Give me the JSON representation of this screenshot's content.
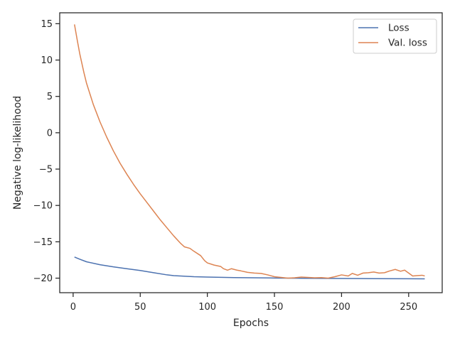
{
  "chart_data": {
    "type": "line",
    "title": "",
    "xlabel": "Epochs",
    "ylabel": "Negative log-likelihood",
    "xlim": [
      -10,
      275
    ],
    "ylim": [
      -22,
      16.5
    ],
    "xticks": [
      0,
      50,
      100,
      150,
      200,
      250
    ],
    "yticks": [
      15,
      10,
      5,
      0,
      -5,
      -10,
      -15,
      -20
    ],
    "ytick_labels": [
      "15",
      "10",
      "5",
      "0",
      "−5",
      "−10",
      "−15",
      "−20"
    ],
    "grid": false,
    "legend_position": "top-right",
    "series": [
      {
        "name": "Loss",
        "color": "#4c72b0",
        "points": [
          [
            1,
            -17.1
          ],
          [
            5,
            -17.4
          ],
          [
            10,
            -17.75
          ],
          [
            20,
            -18.15
          ],
          [
            30,
            -18.45
          ],
          [
            40,
            -18.7
          ],
          [
            50,
            -18.95
          ],
          [
            60,
            -19.25
          ],
          [
            70,
            -19.55
          ],
          [
            75,
            -19.65
          ],
          [
            80,
            -19.7
          ],
          [
            90,
            -19.8
          ],
          [
            100,
            -19.85
          ],
          [
            120,
            -19.92
          ],
          [
            150,
            -19.98
          ],
          [
            175,
            -20.02
          ],
          [
            200,
            -20.05
          ],
          [
            225,
            -20.07
          ],
          [
            250,
            -20.08
          ],
          [
            262,
            -20.1
          ]
        ]
      },
      {
        "name": "Val. loss",
        "color": "#dd8452",
        "points": [
          [
            1,
            14.9
          ],
          [
            3,
            12.8
          ],
          [
            5,
            10.8
          ],
          [
            8,
            8.3
          ],
          [
            10,
            6.8
          ],
          [
            15,
            3.9
          ],
          [
            20,
            1.5
          ],
          [
            25,
            -0.6
          ],
          [
            30,
            -2.5
          ],
          [
            35,
            -4.2
          ],
          [
            40,
            -5.7
          ],
          [
            45,
            -7.1
          ],
          [
            50,
            -8.4
          ],
          [
            55,
            -9.6
          ],
          [
            60,
            -10.8
          ],
          [
            65,
            -12.0
          ],
          [
            70,
            -13.1
          ],
          [
            75,
            -14.2
          ],
          [
            80,
            -15.2
          ],
          [
            83,
            -15.7
          ],
          [
            87,
            -15.9
          ],
          [
            90,
            -16.3
          ],
          [
            95,
            -16.9
          ],
          [
            98,
            -17.6
          ],
          [
            100,
            -17.9
          ],
          [
            105,
            -18.2
          ],
          [
            110,
            -18.4
          ],
          [
            112,
            -18.7
          ],
          [
            115,
            -18.9
          ],
          [
            118,
            -18.7
          ],
          [
            122,
            -18.9
          ],
          [
            125,
            -19.0
          ],
          [
            130,
            -19.2
          ],
          [
            135,
            -19.3
          ],
          [
            140,
            -19.35
          ],
          [
            145,
            -19.55
          ],
          [
            150,
            -19.8
          ],
          [
            155,
            -19.9
          ],
          [
            160,
            -20.0
          ],
          [
            165,
            -19.95
          ],
          [
            170,
            -19.85
          ],
          [
            175,
            -19.9
          ],
          [
            180,
            -19.95
          ],
          [
            185,
            -19.92
          ],
          [
            190,
            -20.0
          ],
          [
            195,
            -19.8
          ],
          [
            200,
            -19.55
          ],
          [
            205,
            -19.7
          ],
          [
            208,
            -19.35
          ],
          [
            212,
            -19.6
          ],
          [
            216,
            -19.3
          ],
          [
            220,
            -19.25
          ],
          [
            224,
            -19.15
          ],
          [
            228,
            -19.3
          ],
          [
            232,
            -19.25
          ],
          [
            236,
            -19.0
          ],
          [
            240,
            -18.8
          ],
          [
            244,
            -19.05
          ],
          [
            247,
            -18.9
          ],
          [
            250,
            -19.3
          ],
          [
            253,
            -19.7
          ],
          [
            256,
            -19.65
          ],
          [
            260,
            -19.6
          ],
          [
            262,
            -19.7
          ]
        ]
      }
    ]
  }
}
